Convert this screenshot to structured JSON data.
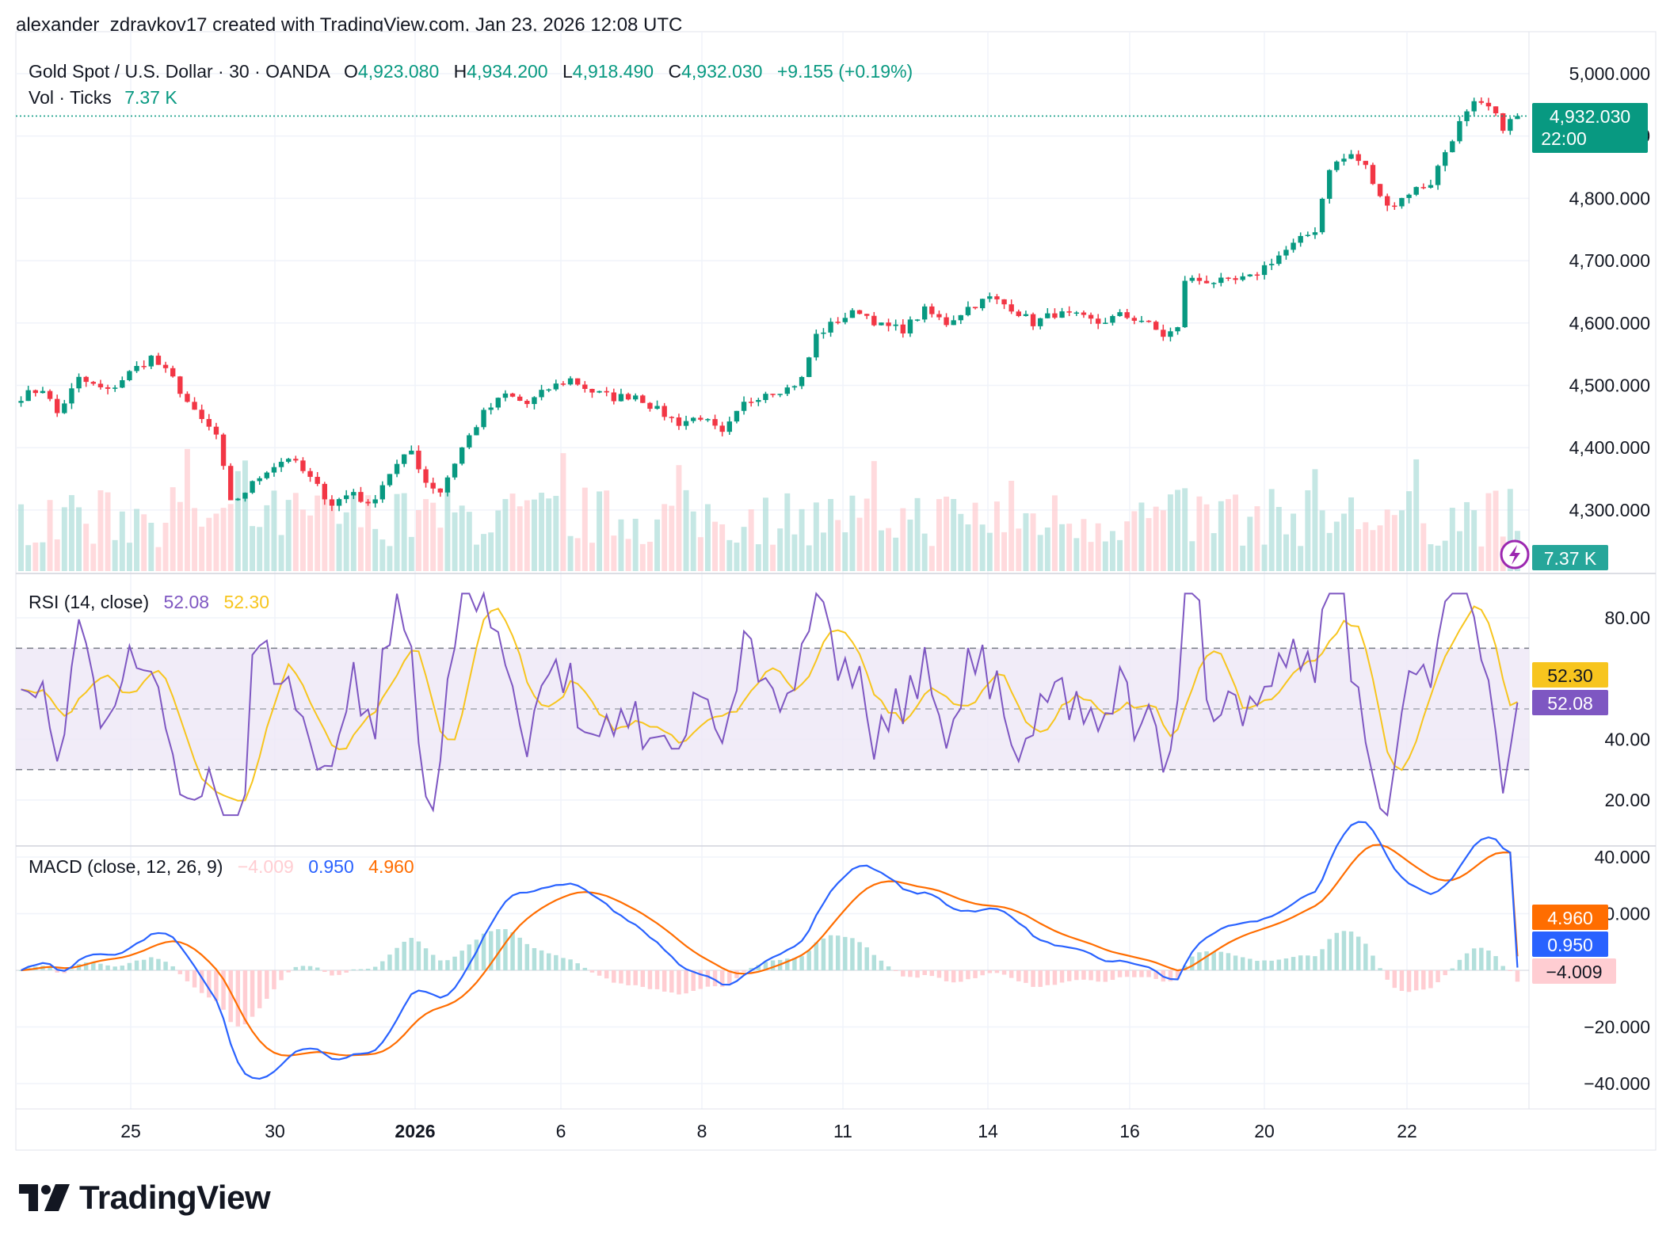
{
  "byline": "alexander_zdravkov17 created with TradingView.com, Jan 23, 2026 12:08 UTC",
  "brand": "TradingView",
  "colors": {
    "up": "#089981",
    "down": "#f23645",
    "rsi": "#7e57c2",
    "rsi_ma": "#f7c51e",
    "macd": "#2962ff",
    "signal": "#ff6d00",
    "hist_pos": "#b2dfdb",
    "hist_neg": "#ffcdd2",
    "rsi_band": "#ede7f6",
    "grid": "#f0f3fa"
  },
  "price_legend": {
    "symbol": "Gold Spot / U.S. Dollar · 30 · OANDA",
    "o_label": "O",
    "o": "4,923.080",
    "h_label": "H",
    "h": "4,934.200",
    "l_label": "L",
    "l": "4,918.490",
    "c_label": "C",
    "c": "4,932.030",
    "change": "+9.155 (+0.19%)"
  },
  "vol_legend": {
    "label": "Vol · Ticks",
    "value": "7.37 K"
  },
  "price_badge": {
    "price": "4,932.030",
    "time": "22:00"
  },
  "vol_badge": "7.37 K",
  "rsi_legend": {
    "label": "RSI (14, close)",
    "rsi": "52.08",
    "ma": "52.30"
  },
  "rsi_badges": {
    "ma": "52.30",
    "rsi": "52.08"
  },
  "macd_legend": {
    "label": "MACD (close, 12, 26, 9)",
    "hist": "−4.009",
    "macd": "0.950",
    "signal": "4.960"
  },
  "macd_badges": {
    "signal": "4.960",
    "macd": "0.950",
    "hist": "−4.009"
  },
  "chart_data": [
    {
      "type": "candlestick",
      "title": "Gold Spot / U.S. Dollar · 30 · OANDA",
      "ylim": [
        4230,
        5020
      ],
      "y_ticks": [
        "5,000.000",
        "4,900.000",
        "4,800.000",
        "4,700.000",
        "4,600.000",
        "4,500.000",
        "4,400.000",
        "4,300.000"
      ],
      "x_ticks": [
        "25",
        "30",
        "2026",
        "6",
        "8",
        "11",
        "14",
        "16",
        "20",
        "22"
      ],
      "last_price": 4932.03,
      "price_path": [
        [
          0,
          4482
        ],
        [
          3,
          4495
        ],
        [
          5,
          4455
        ],
        [
          8,
          4510
        ],
        [
          12,
          4490
        ],
        [
          15,
          4520
        ],
        [
          18,
          4545
        ],
        [
          21,
          4510
        ],
        [
          24,
          4455
        ],
        [
          27,
          4420
        ],
        [
          29,
          4310
        ],
        [
          31,
          4330
        ],
        [
          34,
          4365
        ],
        [
          37,
          4385
        ],
        [
          40,
          4350
        ],
        [
          43,
          4310
        ],
        [
          46,
          4330
        ],
        [
          48,
          4305
        ],
        [
          51,
          4360
        ],
        [
          54,
          4395
        ],
        [
          56,
          4345
        ],
        [
          58,
          4330
        ],
        [
          61,
          4400
        ],
        [
          64,
          4455
        ],
        [
          67,
          4485
        ],
        [
          70,
          4470
        ],
        [
          73,
          4495
        ],
        [
          76,
          4510
        ],
        [
          79,
          4490
        ],
        [
          82,
          4480
        ],
        [
          85,
          4485
        ],
        [
          88,
          4460
        ],
        [
          91,
          4440
        ],
        [
          94,
          4450
        ],
        [
          97,
          4420
        ],
        [
          100,
          4470
        ],
        [
          103,
          4490
        ],
        [
          106,
          4495
        ],
        [
          108,
          4510
        ],
        [
          110,
          4580
        ],
        [
          113,
          4605
        ],
        [
          116,
          4620
        ],
        [
          119,
          4595
        ],
        [
          122,
          4590
        ],
        [
          125,
          4620
        ],
        [
          128,
          4600
        ],
        [
          131,
          4625
        ],
        [
          134,
          4640
        ],
        [
          137,
          4625
        ],
        [
          140,
          4600
        ],
        [
          143,
          4615
        ],
        [
          146,
          4610
        ],
        [
          149,
          4600
        ],
        [
          152,
          4612
        ],
        [
          155,
          4605
        ],
        [
          158,
          4580
        ],
        [
          160,
          4590
        ],
        [
          161,
          4670
        ],
        [
          164,
          4668
        ],
        [
          167,
          4665
        ],
        [
          170,
          4672
        ],
        [
          173,
          4700
        ],
        [
          176,
          4725
        ],
        [
          179,
          4750
        ],
        [
          181,
          4850
        ],
        [
          184,
          4870
        ],
        [
          186,
          4850
        ],
        [
          188,
          4800
        ],
        [
          190,
          4790
        ],
        [
          192,
          4810
        ],
        [
          195,
          4825
        ],
        [
          197,
          4875
        ],
        [
          199,
          4920
        ],
        [
          201,
          4950
        ],
        [
          203,
          4945
        ],
        [
          205,
          4915
        ],
        [
          207,
          4932
        ]
      ],
      "volume_max_ticks": 11.0
    },
    {
      "type": "line",
      "title": "RSI (14, close)",
      "ylim": [
        10,
        90
      ],
      "y_ticks": [
        "80.00",
        "40.00",
        "20.00"
      ],
      "bands": [
        30,
        50,
        70
      ],
      "series": [
        {
          "name": "RSI",
          "last": 52.08
        },
        {
          "name": "RSI MA",
          "last": 52.3
        }
      ]
    },
    {
      "type": "line",
      "title": "MACD (close, 12, 26, 9)",
      "ylim": [
        -50,
        40
      ],
      "y_ticks": [
        "40.000",
        "20.000",
        "−20.000",
        "−40.000"
      ],
      "series": [
        {
          "name": "Histogram",
          "last": -4.009
        },
        {
          "name": "MACD",
          "last": 0.95
        },
        {
          "name": "Signal",
          "last": 4.96
        }
      ]
    }
  ]
}
